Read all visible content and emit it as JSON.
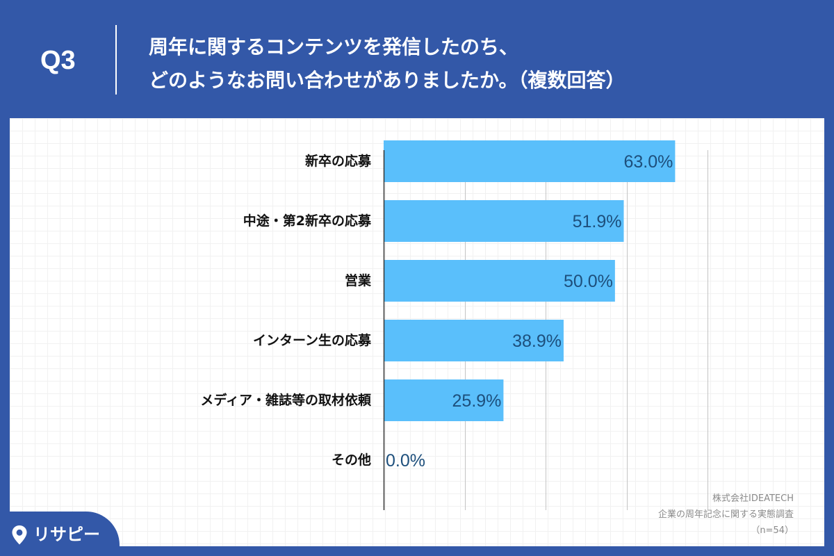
{
  "header": {
    "question_no": "Q3",
    "question_line1": "周年に関するコンテンツを発信したのち、",
    "question_line2": "どのようなお問い合わせがありましたか。（複数回答）"
  },
  "chart_data": {
    "type": "bar",
    "orientation": "horizontal",
    "categories": [
      "新卒の応募",
      "中途・第2新卒の応募",
      "営業",
      "インターン生の応募",
      "メディア・雑誌等の取材依頼",
      "その他"
    ],
    "values": [
      63.0,
      51.9,
      50.0,
      38.9,
      25.9,
      0.0
    ],
    "value_labels": [
      "63.0%",
      "51.9%",
      "50.0%",
      "38.9%",
      "25.9%",
      "0.0%"
    ],
    "title": "",
    "xlabel": "",
    "ylabel": "",
    "xlim": [
      0,
      70
    ],
    "gridlines_at": [
      0,
      17.5,
      35,
      52.5,
      70
    ],
    "grid": true,
    "legend": "none",
    "bar_color": "#5abffb",
    "label_color": "#1d4f7c"
  },
  "source": {
    "company": "株式会社IDEATECH",
    "survey": "企業の周年記念に関する実態調査",
    "n": "（n=54）"
  },
  "logo": {
    "text": "リサピー",
    "icon": "map-pin-icon"
  },
  "colors": {
    "header_bg": "#3358a8",
    "panel_bg": "#ffffff",
    "bar": "#5abffb"
  }
}
